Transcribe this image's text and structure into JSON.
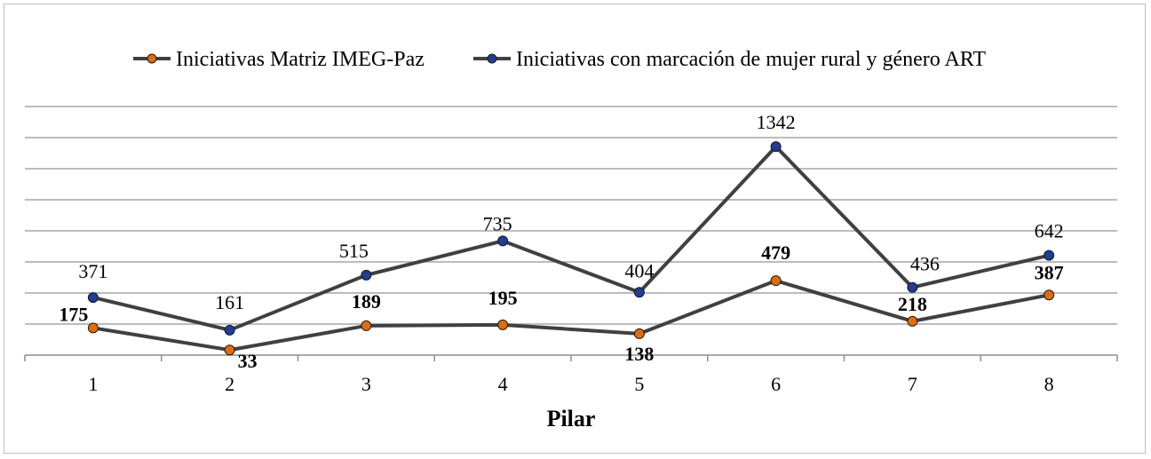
{
  "chart_data": {
    "type": "line",
    "title": "",
    "xlabel": "Pilar",
    "ylabel": "",
    "categories": [
      "1",
      "2",
      "3",
      "4",
      "5",
      "6",
      "7",
      "8"
    ],
    "ylim": [
      0,
      1600
    ],
    "grid": true,
    "legend_position": "top",
    "series": [
      {
        "name": "Iniciativas Matriz IMEG-Paz",
        "values": [
          175,
          33,
          189,
          195,
          138,
          479,
          218,
          387
        ],
        "color": "#404040",
        "marker_color": "#e36c0a",
        "label_style": "bold"
      },
      {
        "name": "Iniciativas con marcación de mujer rural y género ART",
        "values": [
          371,
          161,
          515,
          735,
          404,
          1342,
          436,
          642
        ],
        "color": "#404040",
        "marker_color": "#1f3d99",
        "label_style": "normal"
      }
    ]
  }
}
